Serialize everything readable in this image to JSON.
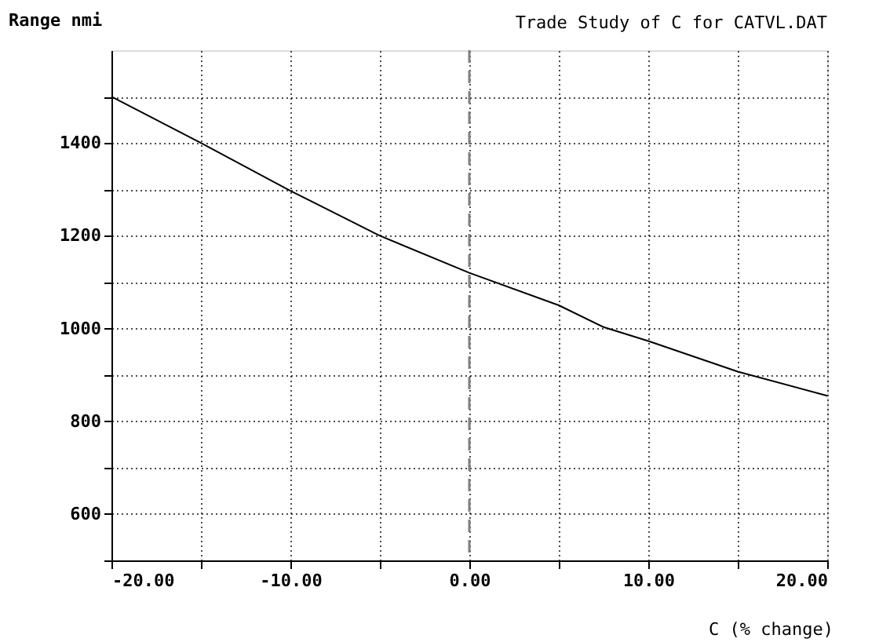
{
  "chart_data": {
    "type": "line",
    "title": "Trade Study of C for CATVL.DAT",
    "xlabel": "C (% change)",
    "ylabel": "Range nmi",
    "x": [
      -20,
      -15,
      -10,
      -5,
      0,
      5,
      7.5,
      10,
      15,
      20
    ],
    "series": [
      {
        "color": "#000000",
        "values": [
          1500,
          1400,
          1297,
          1200,
          1120,
          1050,
          1003,
          973,
          907,
          855
        ]
      }
    ],
    "xlim": [
      -20,
      20
    ],
    "ylim": [
      500,
      1600
    ],
    "xticks": [
      {
        "value": -20,
        "label": "-20.00"
      },
      {
        "value": -15,
        "label": null
      },
      {
        "value": -10,
        "label": "-10.00"
      },
      {
        "value": -5,
        "label": null
      },
      {
        "value": 0,
        "label": "0.00"
      },
      {
        "value": 5,
        "label": null
      },
      {
        "value": 10,
        "label": "10.00"
      },
      {
        "value": 15,
        "label": null
      },
      {
        "value": 20,
        "label": "20.00"
      }
    ],
    "yticks": [
      {
        "value": 500,
        "label": null
      },
      600,
      {
        "value": 700,
        "label": null
      },
      800,
      {
        "value": 900,
        "label": null
      },
      1000,
      {
        "value": 1100,
        "label": null
      },
      1200,
      {
        "value": 1300,
        "label": null
      },
      1400,
      {
        "value": 1500,
        "label": null
      }
    ],
    "ref_lines": [
      {
        "axis": "x",
        "value": 0,
        "color": "#808080",
        "line_style": "dashed"
      }
    ],
    "grid": true,
    "legend": false,
    "marker": "none",
    "line_style": "solid"
  }
}
